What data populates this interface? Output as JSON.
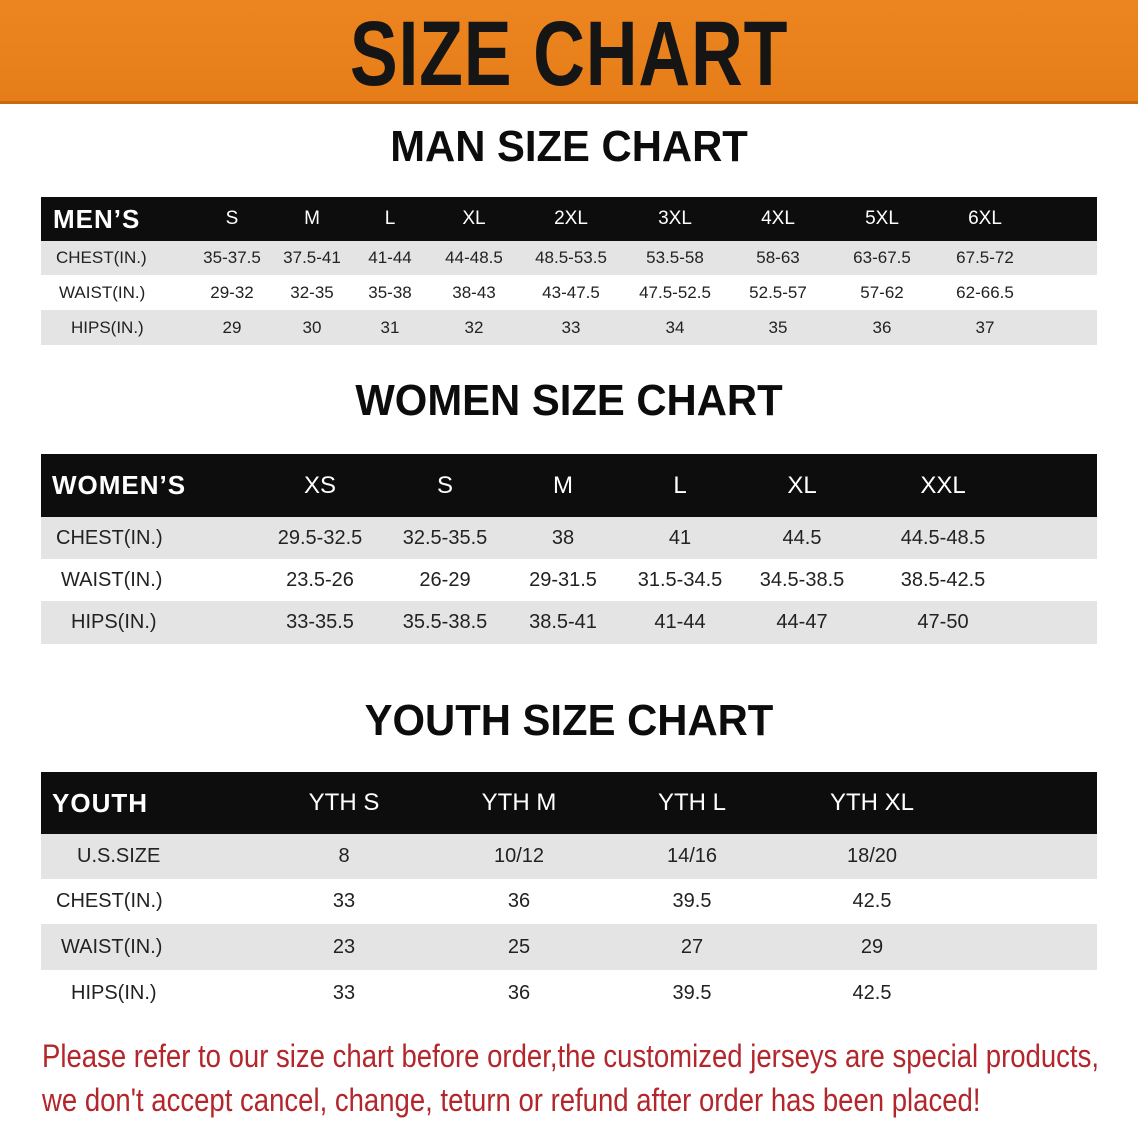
{
  "banner_title": "SIZE CHART",
  "colors": {
    "banner": "#e8801c",
    "header_bg": "#0d0d0d",
    "stripe": "#e4e4e4",
    "note": "#b3262b"
  },
  "men": {
    "title": "MAN SIZE CHART",
    "header": [
      "MEN’S",
      "S",
      "M",
      "L",
      "XL",
      "2XL",
      "3XL",
      "4XL",
      "5XL",
      "6XL"
    ],
    "rows": [
      [
        "CHEST(IN.)",
        "35-37.5",
        "37.5-41",
        "41-44",
        "44-48.5",
        "48.5-53.5",
        "53.5-58",
        "58-63",
        "63-67.5",
        "67.5-72"
      ],
      [
        "WAIST(IN.)",
        "29-32",
        "32-35",
        "35-38",
        "38-43",
        "43-47.5",
        "47.5-52.5",
        "52.5-57",
        "57-62",
        "62-66.5"
      ],
      [
        "HIPS(IN.)",
        "29",
        "30",
        "31",
        "32",
        "33",
        "34",
        "35",
        "36",
        "37"
      ]
    ]
  },
  "women": {
    "title": "WOMEN SIZE CHART",
    "header": [
      "WOMEN’S",
      "XS",
      "S",
      "M",
      "L",
      "XL",
      "XXL"
    ],
    "rows": [
      [
        "CHEST(IN.)",
        "29.5-32.5",
        "32.5-35.5",
        "38",
        "41",
        "44.5",
        "44.5-48.5"
      ],
      [
        "WAIST(IN.)",
        "23.5-26",
        "26-29",
        "29-31.5",
        "31.5-34.5",
        "34.5-38.5",
        "38.5-42.5"
      ],
      [
        "HIPS(IN.)",
        "33-35.5",
        "35.5-38.5",
        "38.5-41",
        "41-44",
        "44-47",
        "47-50"
      ]
    ]
  },
  "youth": {
    "title": "YOUTH SIZE CHART",
    "header": [
      "YOUTH",
      "YTH S",
      "YTH M",
      "YTH L",
      "YTH XL"
    ],
    "rows": [
      [
        "U.S.SIZE",
        "8",
        "10/12",
        "14/16",
        "18/20"
      ],
      [
        "CHEST(IN.)",
        "33",
        "36",
        "39.5",
        "42.5"
      ],
      [
        "WAIST(IN.)",
        "23",
        "25",
        "27",
        "29"
      ],
      [
        "HIPS(IN.)",
        "33",
        "36",
        "39.5",
        "42.5"
      ]
    ]
  },
  "note": {
    "line1": "Please refer to our size chart before order,the customized jerseys are special products,",
    "line2": "we don't accept cancel, change, teturn or refund after order has been placed!"
  }
}
